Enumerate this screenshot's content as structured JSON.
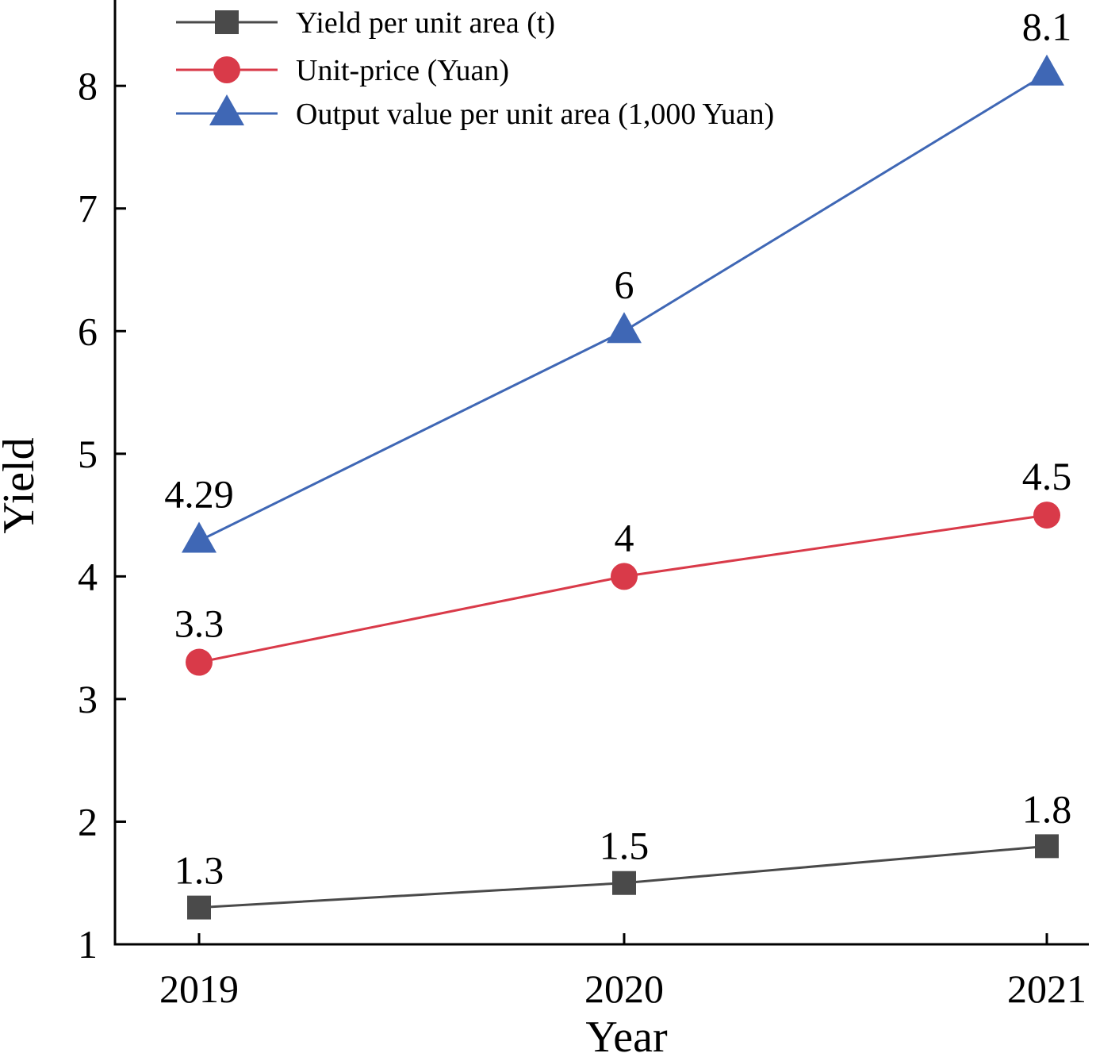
{
  "chart_data": {
    "type": "line",
    "x": [
      "2019",
      "2020",
      "2021"
    ],
    "xlabel": "Year",
    "ylabel": "Yield",
    "ylim": [
      1,
      8.7
    ],
    "yticks": [
      1,
      2,
      3,
      4,
      5,
      6,
      7,
      8
    ],
    "grid": false,
    "legend_position": "top-left",
    "series": [
      {
        "name": "Yield per unit area (t)",
        "values": [
          1.3,
          1.5,
          1.8
        ],
        "labels": [
          "1.3",
          "1.5",
          "1.8"
        ],
        "color": "#4a4a4a",
        "marker": "square"
      },
      {
        "name": "Unit-price (Yuan)",
        "values": [
          3.3,
          4,
          4.5
        ],
        "labels": [
          "3.3",
          "4",
          "4.5"
        ],
        "color": "#d93a49",
        "marker": "circle"
      },
      {
        "name": "Output value per unit area (1,000 Yuan)",
        "values": [
          4.29,
          6,
          8.1
        ],
        "labels": [
          "4.29",
          "6",
          "8.1"
        ],
        "color": "#3f67b5",
        "marker": "triangle"
      }
    ]
  }
}
